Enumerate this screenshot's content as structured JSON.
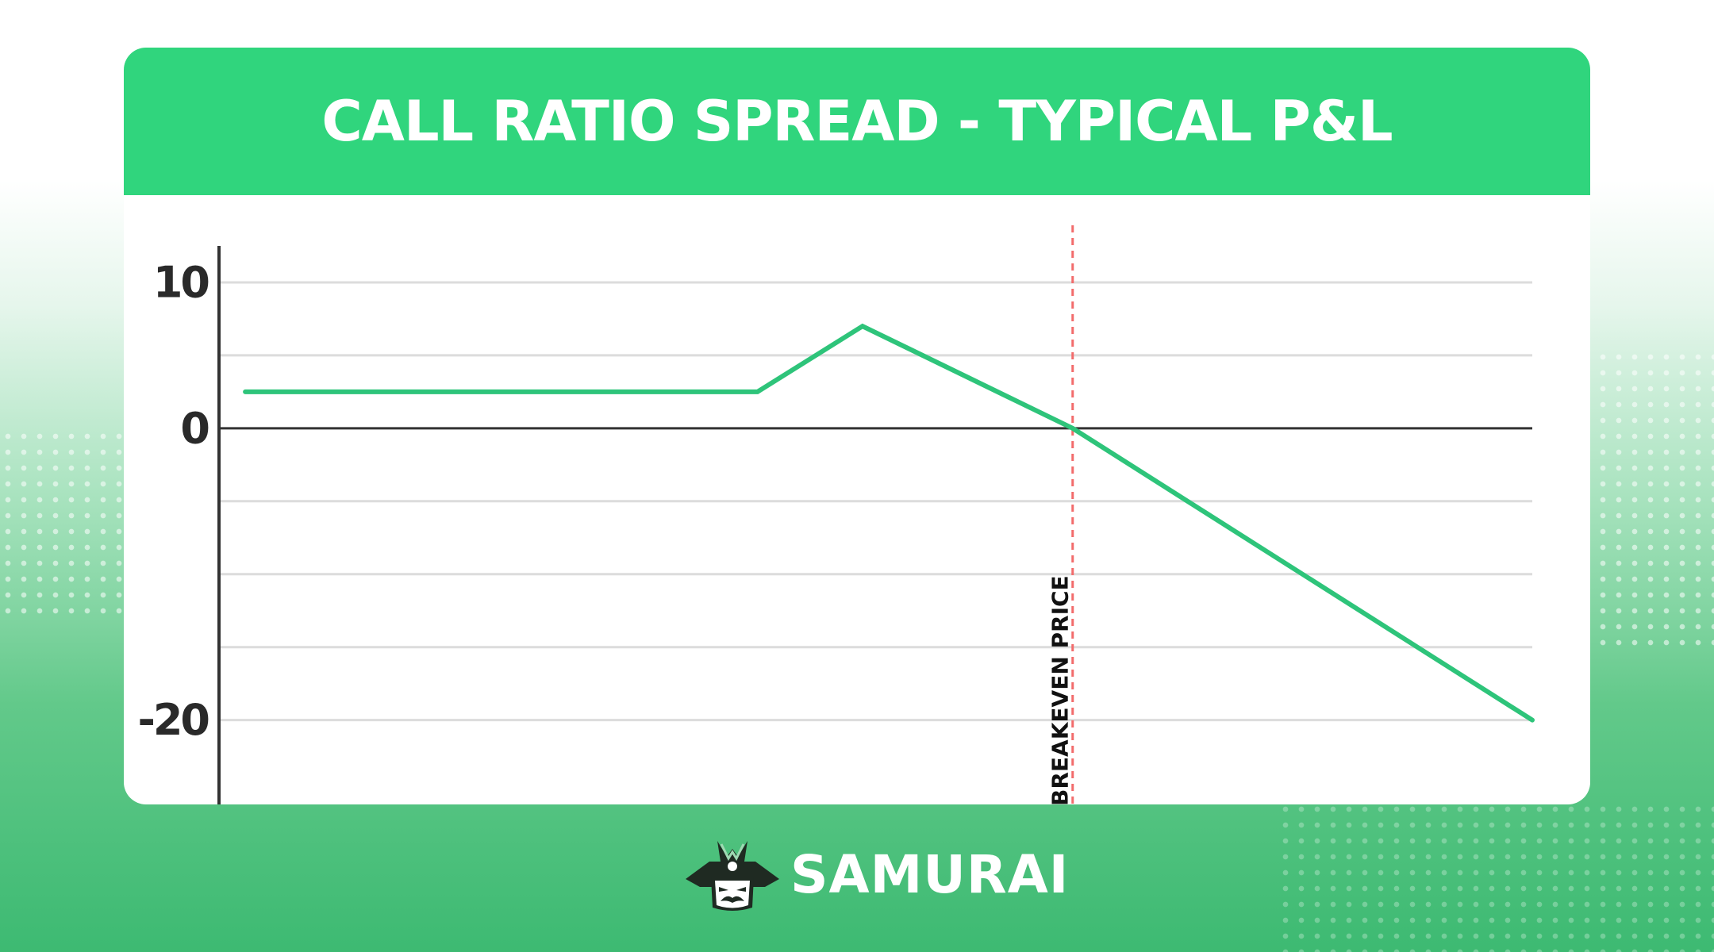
{
  "title": "CALL RATIO SPREAD - TYPICAL P&L",
  "brand": {
    "name": "SAMURAI",
    "logo_icon": "samurai-mascot-icon"
  },
  "colors": {
    "accent": "#30d57d",
    "line": "#2ec47a",
    "breakeven": "#f26b6b",
    "axis": "#333333",
    "grid": "#dcdcdc"
  },
  "chart_data": {
    "type": "line",
    "title": "CALL RATIO SPREAD - TYPICAL P&L",
    "xlabel": "",
    "ylabel": "",
    "ylim": [
      -23.5,
      12.5
    ],
    "xlim": [
      0,
      100
    ],
    "y_ticks": [
      10,
      5,
      0,
      -5,
      -10,
      -15,
      -20
    ],
    "y_tick_labels": [
      {
        "value": 10,
        "label": "10"
      },
      {
        "value": 0,
        "label": "0"
      },
      {
        "value": -20,
        "label": "-20"
      }
    ],
    "grid": true,
    "zero_line": true,
    "series": [
      {
        "x": [
          2,
          41,
          49,
          65,
          100
        ],
        "y": [
          2.5,
          2.5,
          7,
          0,
          -20
        ]
      }
    ],
    "annotations": [
      {
        "type": "vline",
        "x": 65,
        "label": "BREAKEVEN PRICE",
        "style": "dashed"
      }
    ]
  }
}
